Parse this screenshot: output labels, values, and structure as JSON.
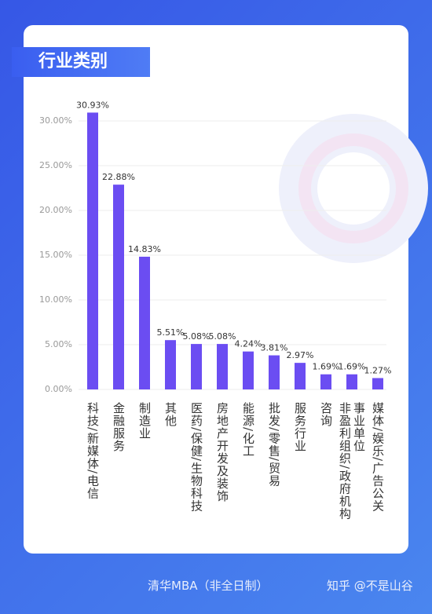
{
  "header": {
    "title": "行业类别"
  },
  "chart_data": {
    "type": "bar",
    "categories": [
      "科技/新媒体/电信",
      "金融服务",
      "制造业",
      "其他",
      "医药/保健/生物科技",
      "房地产开发及装饰",
      "能源/化工",
      "批发/零售/贸易",
      "服务行业",
      "咨询",
      "事业单位\n非盈利组织/政府机构",
      "媒体/娱乐/广告公关"
    ],
    "values": [
      30.93,
      22.88,
      14.83,
      5.51,
      5.08,
      5.08,
      4.24,
      3.81,
      2.97,
      1.69,
      1.69,
      1.27
    ],
    "value_labels": [
      "30.93%",
      "22.88%",
      "14.83%",
      "5.51%",
      "5.08%",
      "5.08%",
      "4.24%",
      "3.81%",
      "2.97%",
      "1.69%",
      "1.69%",
      "1.27%"
    ],
    "color": "#6b4df2",
    "ylim": [
      0,
      32
    ],
    "yticks": [
      {
        "value": 0,
        "label": "0.00%"
      },
      {
        "value": 5,
        "label": "5.00%"
      },
      {
        "value": 10,
        "label": "10.00%"
      },
      {
        "value": 15,
        "label": "15.00%"
      },
      {
        "value": 20,
        "label": "20.00%"
      },
      {
        "value": 25,
        "label": "25.00%"
      },
      {
        "value": 30,
        "label": "30.00%"
      }
    ],
    "grid": true
  },
  "footer": {
    "left": "清华MBA（非全日制）",
    "right": "知乎 @不是山谷"
  }
}
